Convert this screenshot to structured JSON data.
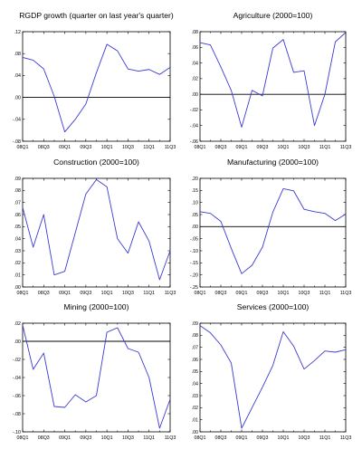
{
  "chart_data": [
    {
      "type": "line",
      "title": "RGDP growth (quarter on last year's quarter)",
      "xlabel": "",
      "ylabel": "",
      "categories": [
        "08Q1",
        "08Q2",
        "08Q3",
        "08Q4",
        "09Q1",
        "09Q2",
        "09Q3",
        "09Q4",
        "10Q1",
        "10Q2",
        "10Q3",
        "10Q4",
        "11Q1",
        "11Q2",
        "11Q3"
      ],
      "x_tick_labels": [
        "08Q1",
        "08Q3",
        "09Q1",
        "09Q3",
        "10Q1",
        "10Q3",
        "11Q1",
        "11Q3"
      ],
      "y_ticks": [
        -0.08,
        -0.04,
        0.0,
        0.04,
        0.08,
        0.12
      ],
      "y_tick_labels": [
        "-.08",
        "-.04",
        ".00",
        ".04",
        ".08",
        ".12"
      ],
      "ylim": [
        -0.08,
        0.12
      ],
      "zero_line": 0,
      "grid": false,
      "series": [
        {
          "values": [
            0.073,
            0.068,
            0.052,
            0.002,
            -0.063,
            -0.04,
            -0.012,
            0.045,
            0.097,
            0.085,
            0.052,
            0.048,
            0.051,
            0.042,
            0.055
          ]
        }
      ]
    },
    {
      "type": "line",
      "title": "Agriculture (2000=100)",
      "xlabel": "",
      "ylabel": "",
      "categories": [
        "08Q1",
        "08Q2",
        "08Q3",
        "08Q4",
        "09Q1",
        "09Q2",
        "09Q3",
        "09Q4",
        "10Q1",
        "10Q2",
        "10Q3",
        "10Q4",
        "11Q1",
        "11Q2",
        "11Q3"
      ],
      "x_tick_labels": [
        "08Q1",
        "08Q3",
        "09Q1",
        "09Q3",
        "10Q1",
        "10Q3",
        "11Q1",
        "11Q3"
      ],
      "y_ticks": [
        -0.06,
        -0.04,
        -0.02,
        0.0,
        0.02,
        0.04,
        0.06,
        0.08
      ],
      "y_tick_labels": [
        "-.06",
        "-.04",
        "-.02",
        ".00",
        ".02",
        ".04",
        ".06",
        ".08"
      ],
      "ylim": [
        -0.06,
        0.08
      ],
      "zero_line": 0,
      "grid": false,
      "series": [
        {
          "values": [
            0.066,
            0.063,
            0.035,
            0.005,
            -0.042,
            0.005,
            -0.002,
            0.059,
            0.07,
            0.028,
            0.03,
            -0.04,
            0.0,
            0.067,
            0.079
          ]
        }
      ]
    },
    {
      "type": "line",
      "title": "Construction (2000=100)",
      "xlabel": "",
      "ylabel": "",
      "categories": [
        "08Q1",
        "08Q2",
        "08Q3",
        "08Q4",
        "09Q1",
        "09Q2",
        "09Q3",
        "09Q4",
        "10Q1",
        "10Q2",
        "10Q3",
        "10Q4",
        "11Q1",
        "11Q2",
        "11Q3"
      ],
      "x_tick_labels": [
        "08Q1",
        "08Q3",
        "09Q1",
        "09Q3",
        "10Q1",
        "10Q3",
        "11Q1",
        "11Q3"
      ],
      "y_ticks": [
        0.0,
        0.01,
        0.02,
        0.03,
        0.04,
        0.05,
        0.06,
        0.07,
        0.08,
        0.09
      ],
      "y_tick_labels": [
        ".00",
        ".01",
        ".02",
        ".03",
        ".04",
        ".05",
        ".06",
        ".07",
        ".08",
        ".09"
      ],
      "ylim": [
        0.0,
        0.09
      ],
      "zero_line": null,
      "grid": false,
      "series": [
        {
          "values": [
            0.066,
            0.033,
            0.06,
            0.01,
            0.013,
            0.045,
            0.077,
            0.089,
            0.083,
            0.04,
            0.028,
            0.054,
            0.038,
            0.006,
            0.03
          ]
        }
      ]
    },
    {
      "type": "line",
      "title": "Manufacturing (2000=100)",
      "xlabel": "",
      "ylabel": "",
      "categories": [
        "08Q1",
        "08Q2",
        "08Q3",
        "08Q4",
        "09Q1",
        "09Q2",
        "09Q3",
        "09Q4",
        "10Q1",
        "10Q2",
        "10Q3",
        "10Q4",
        "11Q1",
        "11Q2",
        "11Q3"
      ],
      "x_tick_labels": [
        "08Q1",
        "08Q3",
        "09Q1",
        "09Q3",
        "10Q1",
        "10Q3",
        "11Q1",
        "11Q3"
      ],
      "y_ticks": [
        -0.25,
        -0.2,
        -0.15,
        -0.1,
        -0.05,
        0.0,
        0.05,
        0.1,
        0.15,
        0.2
      ],
      "y_tick_labels": [
        "-.25",
        "-.20",
        "-.15",
        "-.10",
        "-.05",
        ".00",
        ".05",
        ".10",
        ".15",
        ".20"
      ],
      "ylim": [
        -0.25,
        0.2
      ],
      "zero_line": 0,
      "grid": false,
      "series": [
        {
          "values": [
            0.062,
            0.055,
            0.022,
            -0.09,
            -0.195,
            -0.16,
            -0.085,
            0.06,
            0.157,
            0.148,
            0.072,
            0.062,
            0.055,
            0.025,
            0.052
          ]
        }
      ]
    },
    {
      "type": "line",
      "title": "Mining (2000=100)",
      "xlabel": "",
      "ylabel": "",
      "categories": [
        "08Q1",
        "08Q2",
        "08Q3",
        "08Q4",
        "09Q1",
        "09Q2",
        "09Q3",
        "09Q4",
        "10Q1",
        "10Q2",
        "10Q3",
        "10Q4",
        "11Q1",
        "11Q2",
        "11Q3"
      ],
      "x_tick_labels": [
        "08Q1",
        "08Q3",
        "09Q1",
        "09Q3",
        "10Q1",
        "10Q3",
        "11Q1",
        "11Q3"
      ],
      "y_ticks": [
        -0.1,
        -0.08,
        -0.06,
        -0.04,
        -0.02,
        0.0,
        0.02
      ],
      "y_tick_labels": [
        "-.10",
        "-.08",
        "-.06",
        "-.04",
        "-.02",
        ".00",
        ".02"
      ],
      "ylim": [
        -0.1,
        0.02
      ],
      "zero_line": 0,
      "grid": false,
      "series": [
        {
          "values": [
            0.018,
            -0.031,
            -0.013,
            -0.072,
            -0.073,
            -0.059,
            -0.067,
            -0.06,
            0.01,
            0.015,
            -0.008,
            -0.012,
            -0.04,
            -0.096,
            -0.064
          ]
        }
      ]
    },
    {
      "type": "line",
      "title": "Services (2000=100)",
      "xlabel": "",
      "ylabel": "",
      "categories": [
        "08Q1",
        "08Q2",
        "08Q3",
        "08Q4",
        "09Q1",
        "09Q2",
        "09Q3",
        "09Q4",
        "10Q1",
        "10Q2",
        "10Q3",
        "10Q4",
        "11Q1",
        "11Q2",
        "11Q3"
      ],
      "x_tick_labels": [
        "08Q1",
        "08Q3",
        "09Q1",
        "09Q3",
        "10Q1",
        "10Q3",
        "11Q1",
        "11Q3"
      ],
      "y_ticks": [
        0.0,
        0.01,
        0.02,
        0.03,
        0.04,
        0.05,
        0.06,
        0.07,
        0.08,
        0.09
      ],
      "y_tick_labels": [
        ".00",
        ".01",
        ".02",
        ".03",
        ".04",
        ".05",
        ".06",
        ".07",
        ".08",
        ".09"
      ],
      "ylim": [
        0.0,
        0.09
      ],
      "zero_line": null,
      "grid": false,
      "series": [
        {
          "values": [
            0.088,
            0.082,
            0.072,
            0.057,
            0.003,
            0.02,
            0.037,
            0.055,
            0.083,
            0.071,
            0.052,
            0.059,
            0.067,
            0.066,
            0.068
          ]
        }
      ]
    }
  ],
  "colors": {
    "line": "#3b3bd4",
    "axis": "#000000",
    "zero_line": "#000000",
    "background": "#ffffff"
  }
}
